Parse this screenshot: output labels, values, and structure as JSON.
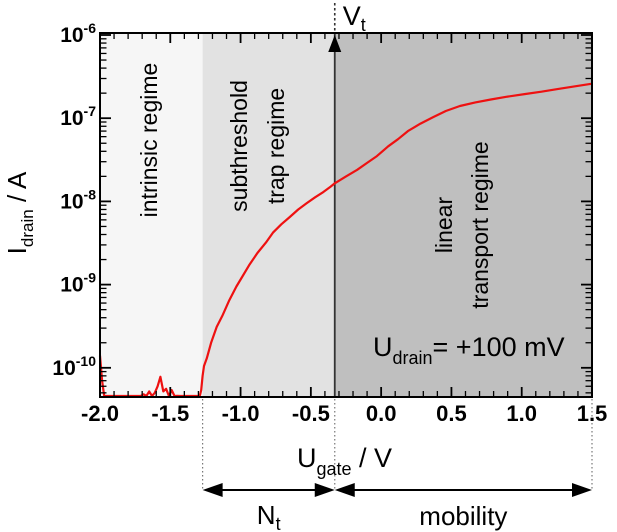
{
  "chart_data": {
    "type": "line",
    "x_axis": {
      "title_main": "U",
      "title_sub": "gate",
      "title_rest": " / V",
      "range": [
        -2.0,
        1.5
      ],
      "tick_values": [
        -2.0,
        -1.5,
        -1.0,
        -0.5,
        0.0,
        0.5,
        1.0,
        1.5
      ],
      "tick_labels": [
        "-2.0",
        "-1.5",
        "-1.0",
        "-0.5",
        "0.0",
        "0.5",
        "1.0",
        "1.5"
      ],
      "minor_step": 0.1
    },
    "y_axis": {
      "title_main": "I",
      "title_sub": "drain",
      "title_rest": " / A",
      "scale": "log",
      "tick_exponents": [
        -6,
        -7,
        -8,
        -9,
        -10
      ],
      "tick_base": "10",
      "range_log": [
        -10.37,
        -6
      ]
    },
    "regions": [
      {
        "name": "intrinsic-regime",
        "label_line1": "intrinsic regime",
        "label_line2": "",
        "x_from": -2.0,
        "x_to": -1.27,
        "fill": "#f6f6f6"
      },
      {
        "name": "subthreshold-trap-regime",
        "label_line1": "subthreshold",
        "label_line2": "trap regime",
        "x_from": -1.27,
        "x_to": -0.33,
        "fill": "#e2e2e2"
      },
      {
        "name": "linear-transport-regime",
        "label_line1": "linear",
        "label_line2": "transport regime",
        "x_from": -0.33,
        "x_to": 1.5,
        "fill": "#bfbfbf"
      }
    ],
    "threshold_marker": {
      "label_main": "V",
      "label_sub": "t",
      "x": -0.33
    },
    "annotation": {
      "main": "U",
      "sub": "drain",
      "rest": "= +100 mV"
    },
    "bottom_arrows": [
      {
        "label_main": "N",
        "label_sub": "t",
        "x_from": -1.27,
        "x_to": -0.33
      },
      {
        "label_main": "mobility",
        "label_sub": "",
        "x_from": -0.33,
        "x_to": 1.5
      }
    ],
    "series": [
      {
        "name": "transfer-curve",
        "color": "#ee1111",
        "points": [
          [
            -2.0,
            1.4e-10
          ],
          [
            -1.985,
            7e-11
          ],
          [
            -1.97,
            4e-11
          ],
          [
            -1.955,
            2.8e-11
          ],
          [
            -1.9,
            2.8e-11
          ],
          [
            -1.86,
            2.8e-11
          ],
          [
            -1.82,
            3e-11
          ],
          [
            -1.78,
            2.8e-11
          ],
          [
            -1.75,
            3.2e-11
          ],
          [
            -1.73,
            4.2e-11
          ],
          [
            -1.71,
            3.6e-11
          ],
          [
            -1.69,
            4.8e-11
          ],
          [
            -1.67,
            4e-11
          ],
          [
            -1.65,
            5.2e-11
          ],
          [
            -1.63,
            4.4e-11
          ],
          [
            -1.61,
            5e-11
          ],
          [
            -1.59,
            6e-11
          ],
          [
            -1.57,
            7.8e-11
          ],
          [
            -1.55,
            5.2e-11
          ],
          [
            -1.53,
            5.6e-11
          ],
          [
            -1.51,
            4.6e-11
          ],
          [
            -1.49,
            5.4e-11
          ],
          [
            -1.47,
            4.2e-11
          ],
          [
            -1.45,
            4.6e-11
          ],
          [
            -1.43,
            3.4e-11
          ],
          [
            -1.4,
            2.9e-11
          ],
          [
            -1.36,
            2.8e-11
          ],
          [
            -1.32,
            2.8e-11
          ],
          [
            -1.29,
            3.4e-11
          ],
          [
            -1.28,
            5.4e-11
          ],
          [
            -1.27,
            8e-11
          ],
          [
            -1.26,
            1.05e-10
          ],
          [
            -1.24,
            1.3e-10
          ],
          [
            -1.21,
            2e-10
          ],
          [
            -1.17,
            3.1e-10
          ],
          [
            -1.13,
            4.2e-10
          ],
          [
            -1.08,
            6.5e-10
          ],
          [
            -1.03,
            9.5e-10
          ],
          [
            -1.0,
            1.15e-09
          ],
          [
            -0.94,
            1.7e-09
          ],
          [
            -0.88,
            2.4e-09
          ],
          [
            -0.82,
            3.2e-09
          ],
          [
            -0.77,
            4.2e-09
          ],
          [
            -0.71,
            5.3e-09
          ],
          [
            -0.65,
            6.5e-09
          ],
          [
            -0.59,
            8e-09
          ],
          [
            -0.53,
            9.5e-09
          ],
          [
            -0.47,
            1.12e-08
          ],
          [
            -0.41,
            1.3e-08
          ],
          [
            -0.36,
            1.5e-08
          ],
          [
            -0.33,
            1.65e-08
          ],
          [
            -0.25,
            2e-08
          ],
          [
            -0.17,
            2.4e-08
          ],
          [
            -0.1,
            2.9e-08
          ],
          [
            -0.03,
            3.5e-08
          ],
          [
            0.05,
            4.6e-08
          ],
          [
            0.12,
            5.6e-08
          ],
          [
            0.19,
            7e-08
          ],
          [
            0.28,
            8.6e-08
          ],
          [
            0.37,
            1.03e-07
          ],
          [
            0.46,
            1.22e-07
          ],
          [
            0.56,
            1.4e-07
          ],
          [
            0.67,
            1.55e-07
          ],
          [
            0.78,
            1.68e-07
          ],
          [
            0.9,
            1.82e-07
          ],
          [
            1.02,
            1.95e-07
          ],
          [
            1.14,
            2.08e-07
          ],
          [
            1.26,
            2.25e-07
          ],
          [
            1.38,
            2.42e-07
          ],
          [
            1.5,
            2.6e-07
          ]
        ]
      }
    ]
  }
}
